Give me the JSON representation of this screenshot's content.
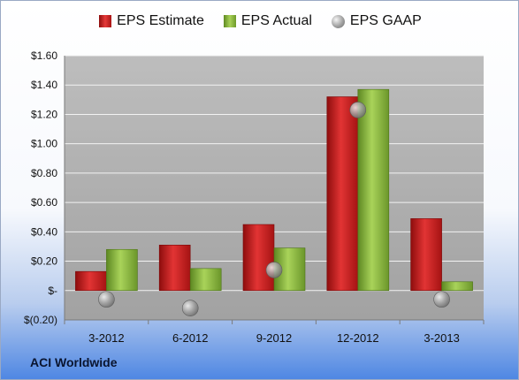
{
  "company": "ACI Worldwide",
  "colors": {
    "estimate": "#cc1f1f",
    "actual": "#8fbc3b",
    "gaap": "#a8a8a8",
    "plot_background": "#a9a9a9"
  },
  "chart_data": {
    "type": "bar",
    "categories": [
      "3-2012",
      "6-2012",
      "9-2012",
      "12-2012",
      "3-2013"
    ],
    "series": [
      {
        "name": "EPS Estimate",
        "kind": "bar",
        "values": [
          0.13,
          0.31,
          0.45,
          1.32,
          0.49
        ]
      },
      {
        "name": "EPS Actual",
        "kind": "bar",
        "values": [
          0.28,
          0.15,
          0.29,
          1.37,
          0.06
        ]
      },
      {
        "name": "EPS GAAP",
        "kind": "marker",
        "values": [
          -0.06,
          -0.12,
          0.14,
          1.23,
          -0.06
        ]
      }
    ],
    "yticks": [
      {
        "value": 1.6,
        "label": "$1.60"
      },
      {
        "value": 1.4,
        "label": "$1.40"
      },
      {
        "value": 1.2,
        "label": "$1.20"
      },
      {
        "value": 1.0,
        "label": "$1.00"
      },
      {
        "value": 0.8,
        "label": "$0.80"
      },
      {
        "value": 0.6,
        "label": "$0.60"
      },
      {
        "value": 0.4,
        "label": "$0.40"
      },
      {
        "value": 0.2,
        "label": "$0.20"
      },
      {
        "value": 0.0,
        "label": "$-"
      },
      {
        "value": -0.2,
        "label": "$(0.20)"
      }
    ],
    "ylim": [
      -0.2,
      1.6
    ],
    "grid": true,
    "legend_position": "top"
  }
}
